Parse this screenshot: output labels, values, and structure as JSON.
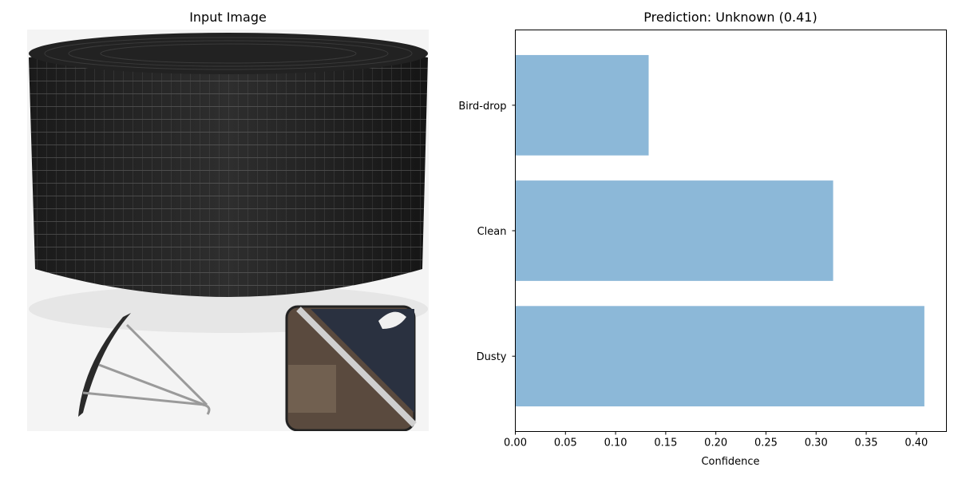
{
  "left_panel": {
    "title": "Input Image",
    "image_description_icon": "solar-panel-bird-spike-roll-photo"
  },
  "chart_data": {
    "type": "bar",
    "orientation": "horizontal",
    "title": "Prediction: Unknown (0.41)",
    "xlabel": "Confidence",
    "ylabel": "",
    "categories": [
      "Dusty",
      "Clean",
      "Bird-drop"
    ],
    "values": [
      0.408,
      0.317,
      0.133
    ],
    "xlim": [
      0.0,
      0.43
    ],
    "xticks": [
      "0.00",
      "0.05",
      "0.10",
      "0.15",
      "0.20",
      "0.25",
      "0.30",
      "0.35",
      "0.40"
    ],
    "bar_color": "#8cb8d8",
    "grid": false
  }
}
